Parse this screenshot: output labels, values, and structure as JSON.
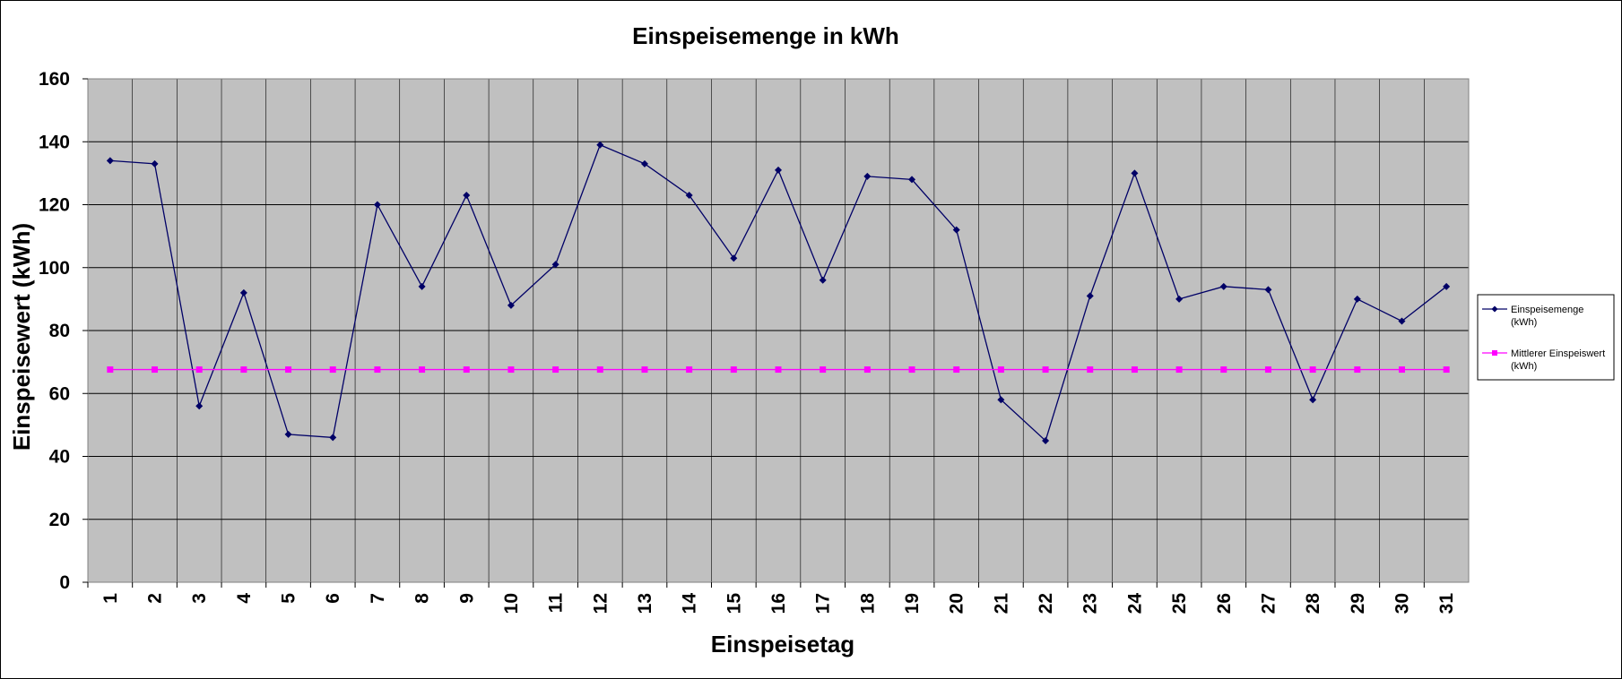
{
  "chart_data": {
    "type": "line",
    "title": "Einspeisemenge in kWh",
    "xlabel": "Einspeisetag",
    "ylabel": "Einspeisewert  (kWh)",
    "categories": [
      "1",
      "2",
      "3",
      "4",
      "5",
      "6",
      "7",
      "8",
      "9",
      "10",
      "11",
      "12",
      "13",
      "14",
      "15",
      "16",
      "17",
      "18",
      "19",
      "20",
      "21",
      "22",
      "23",
      "24",
      "25",
      "26",
      "27",
      "28",
      "29",
      "30",
      "31"
    ],
    "ylim": [
      0,
      160
    ],
    "yticks": [
      "0",
      "20",
      "40",
      "60",
      "80",
      "100",
      "120",
      "140",
      "160"
    ],
    "grid": true,
    "legend_position": "right",
    "series": [
      {
        "name": "Einspeisemenge",
        "name_unit": "(kWh)",
        "color": "#000066",
        "marker": "diamond",
        "values": [
          134,
          133,
          56,
          92,
          47,
          46,
          120,
          94,
          123,
          88,
          101,
          139,
          133,
          123,
          103,
          131,
          96,
          129,
          128,
          112,
          58,
          45,
          91,
          130,
          90,
          94,
          93,
          58,
          90,
          83,
          94
        ]
      },
      {
        "name": "Mittlerer Einspeiswert",
        "name_unit": "(kWh)",
        "color": "#ff00ff",
        "marker": "square",
        "values": [
          67.6,
          67.6,
          67.6,
          67.6,
          67.6,
          67.6,
          67.6,
          67.6,
          67.6,
          67.6,
          67.6,
          67.6,
          67.6,
          67.6,
          67.6,
          67.6,
          67.6,
          67.6,
          67.6,
          67.6,
          67.6,
          67.6,
          67.6,
          67.6,
          67.6,
          67.6,
          67.6,
          67.6,
          67.6,
          67.6,
          67.6
        ]
      }
    ],
    "plot_background": "#c0c0c0",
    "gridline_color": "#000000"
  }
}
